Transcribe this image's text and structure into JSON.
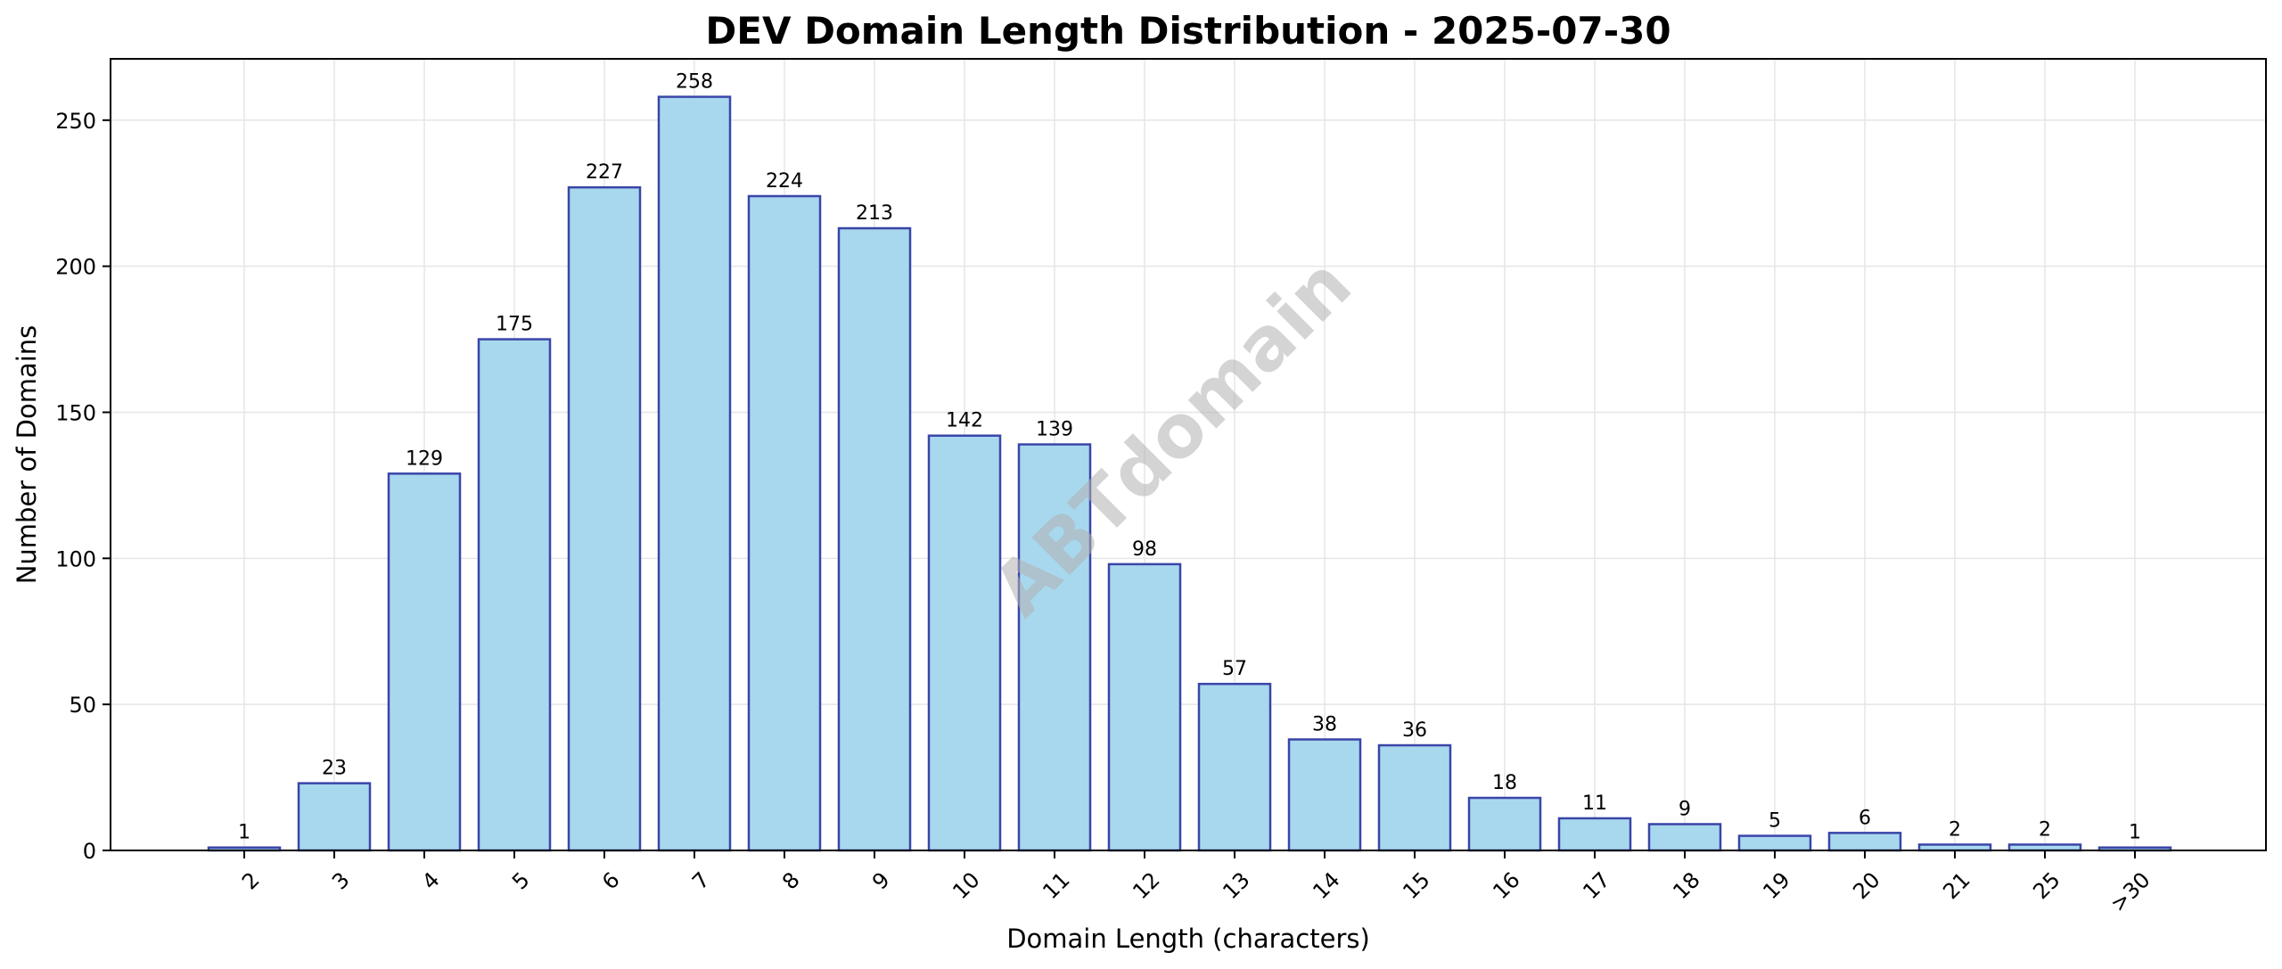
{
  "chart_data": {
    "type": "bar",
    "title": "DEV Domain Length Distribution - 2025-07-30",
    "xlabel": "Domain Length (characters)",
    "ylabel": "Number of Domains",
    "categories": [
      "2",
      "3",
      "4",
      "5",
      "6",
      "7",
      "8",
      "9",
      "10",
      "11",
      "12",
      "13",
      "14",
      "15",
      "16",
      "17",
      "18",
      "19",
      "20",
      "21",
      "25",
      ">30"
    ],
    "values": [
      1,
      23,
      129,
      175,
      227,
      258,
      224,
      213,
      142,
      139,
      98,
      57,
      38,
      36,
      18,
      11,
      9,
      5,
      6,
      2,
      2,
      1
    ],
    "ylim": [
      0,
      271
    ],
    "yticks": [
      0,
      50,
      100,
      150,
      200,
      250
    ],
    "grid": true,
    "watermark": "ABTdomain",
    "bar_color": "#a8d8ee",
    "bar_edge_color": "#3a45a8"
  }
}
